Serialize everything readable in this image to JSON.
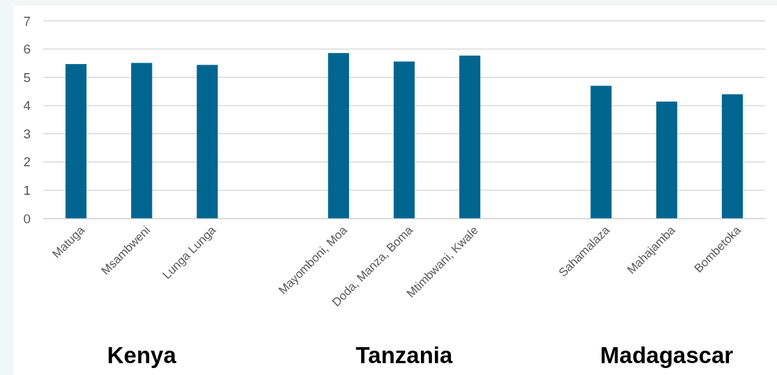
{
  "chart_data": {
    "type": "bar",
    "categories": [
      "Matuga",
      "Msambweni",
      "Lunga Lunga",
      null,
      "Mayomboni, Moa",
      "Doda, Manza, Boma",
      "Mtimbwani, Kwale",
      null,
      "Sahamalaza",
      "Mahajamba",
      "Bombetoka"
    ],
    "values": [
      5.47,
      5.51,
      5.44,
      null,
      5.86,
      5.56,
      5.77,
      null,
      4.7,
      4.14,
      4.4
    ],
    "color": "#00668f",
    "ylim": [
      0,
      7
    ],
    "yticks": [
      0,
      1,
      2,
      3,
      4,
      5,
      6,
      7
    ],
    "grid": "y",
    "annotations": [
      "Kenya",
      "Tanzania",
      "Madagascar"
    ]
  }
}
